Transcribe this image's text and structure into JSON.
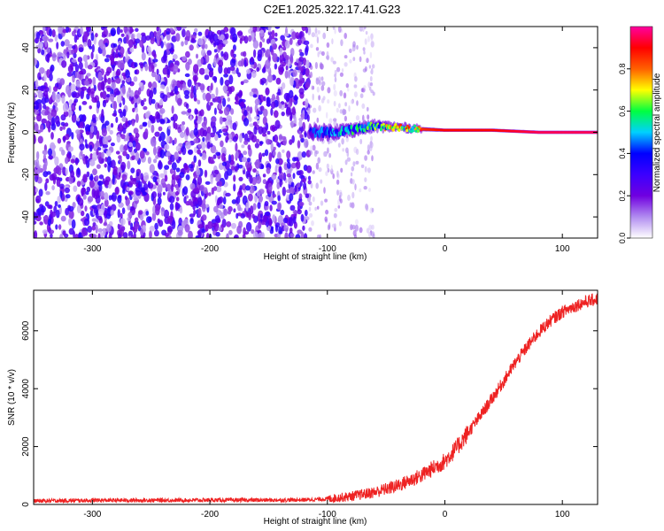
{
  "title": "C2E1.2025.322.17.41.G23",
  "chart_data": [
    {
      "type": "heatmap",
      "title": "C2E1.2025.322.17.41.G23",
      "xlabel": "Height of straight line (km)",
      "ylabel": "Frequency (Hz)",
      "xlim": [
        -350,
        130
      ],
      "ylim": [
        -50,
        50
      ],
      "xticks": [
        -300,
        -200,
        -100,
        0,
        100
      ],
      "yticks": [
        -40,
        -20,
        0,
        20,
        40
      ],
      "colorbar": {
        "label": "Normalized spectral amplitude",
        "range": [
          0,
          1
        ],
        "ticks": [
          "0.0",
          "0.2",
          "0.4",
          "0.6",
          "0.8"
        ],
        "tick_values": [
          0.0,
          0.2,
          0.4,
          0.6,
          0.8
        ],
        "colors": [
          "#ffffff",
          "#b18cf0",
          "#7000e0",
          "#3c00ff",
          "#0000ff",
          "#00d0ff",
          "#00ff40",
          "#ffff00",
          "#ff6000",
          "#ff0000",
          "#ff00a0"
        ]
      },
      "noise_region_x": [
        -350,
        -115
      ],
      "sparse_region_x": [
        -115,
        -60
      ],
      "signal_track": [
        {
          "x": -115,
          "freq": 0,
          "amp": 0.4,
          "spread": 6
        },
        {
          "x": -100,
          "freq": 0,
          "amp": 0.45,
          "spread": 6
        },
        {
          "x": -80,
          "freq": 1,
          "amp": 0.55,
          "spread": 5
        },
        {
          "x": -60,
          "freq": 3,
          "amp": 0.6,
          "spread": 4
        },
        {
          "x": -40,
          "freq": 2.5,
          "amp": 0.75,
          "spread": 3
        },
        {
          "x": -20,
          "freq": 1.5,
          "amp": 0.85,
          "spread": 2
        },
        {
          "x": 0,
          "freq": 1,
          "amp": 0.9,
          "spread": 1.5
        },
        {
          "x": 40,
          "freq": 1,
          "amp": 0.9,
          "spread": 1.5
        },
        {
          "x": 80,
          "freq": 0,
          "amp": 0.95,
          "spread": 1.5
        },
        {
          "x": 130,
          "freq": 0,
          "amp": 0.95,
          "spread": 1.5
        }
      ]
    },
    {
      "type": "line",
      "xlabel": "Height of straight line (km)",
      "ylabel": "SNR (10 * v/v)",
      "xlim": [
        -350,
        130
      ],
      "ylim": [
        0,
        7400
      ],
      "xticks": [
        -300,
        -200,
        -100,
        0,
        100
      ],
      "yticks": [
        0,
        2000,
        4000,
        6000
      ],
      "series": [
        {
          "name": "SNR",
          "color": "#ee2222",
          "x": [
            -350,
            -300,
            -200,
            -150,
            -120,
            -100,
            -80,
            -60,
            -40,
            -20,
            -10,
            0,
            10,
            20,
            30,
            40,
            50,
            60,
            70,
            80,
            90,
            100,
            110,
            120,
            130
          ],
          "y": [
            120,
            140,
            150,
            150,
            160,
            190,
            280,
            420,
            650,
            1000,
            1250,
            1500,
            1950,
            2500,
            3050,
            3650,
            4250,
            4900,
            5450,
            5950,
            6350,
            6650,
            6850,
            7000,
            7100
          ]
        }
      ]
    }
  ]
}
